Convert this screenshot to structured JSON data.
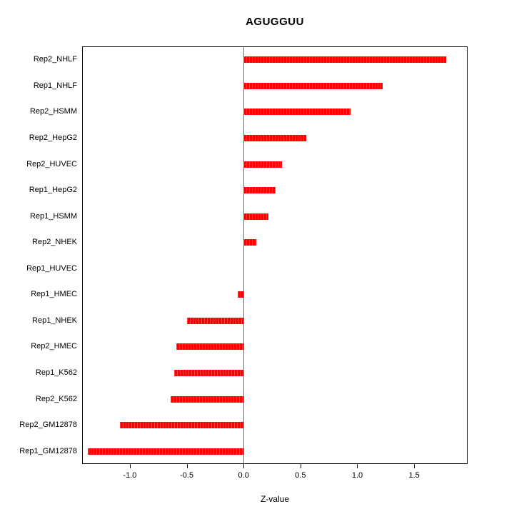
{
  "chart_data": {
    "type": "bar",
    "orientation": "horizontal",
    "title": "AGUGGUU",
    "xlabel": "Z-value",
    "ylabel": "",
    "categories": [
      "Rep2_NHLF",
      "Rep1_NHLF",
      "Rep2_HSMM",
      "Rep2_HepG2",
      "Rep2_HUVEC",
      "Rep1_HepG2",
      "Rep1_HSMM",
      "Rep2_NHEK",
      "Rep1_HUVEC",
      "Rep1_HMEC",
      "Rep1_NHEK",
      "Rep2_HMEC",
      "Rep1_K562",
      "Rep2_K562",
      "Rep2_GM12878",
      "Rep1_GM12878"
    ],
    "values": [
      1.78,
      1.22,
      0.94,
      0.55,
      0.34,
      0.28,
      0.22,
      0.11,
      0.0,
      -0.05,
      -0.5,
      -0.59,
      -0.61,
      -0.64,
      -1.09,
      -1.37
    ],
    "xlim": [
      -1.42,
      1.97
    ],
    "xticks": [
      -1.0,
      -0.5,
      0.0,
      0.5,
      1.0,
      1.5
    ],
    "xtick_labels": [
      "-1.0",
      "-0.5",
      "0.0",
      "0.5",
      "1.0",
      "1.5"
    ],
    "bar_color": "#FF0000",
    "zero_line_color": "#00BB00",
    "axis_color": "#000000",
    "grid": false,
    "legend": false
  }
}
